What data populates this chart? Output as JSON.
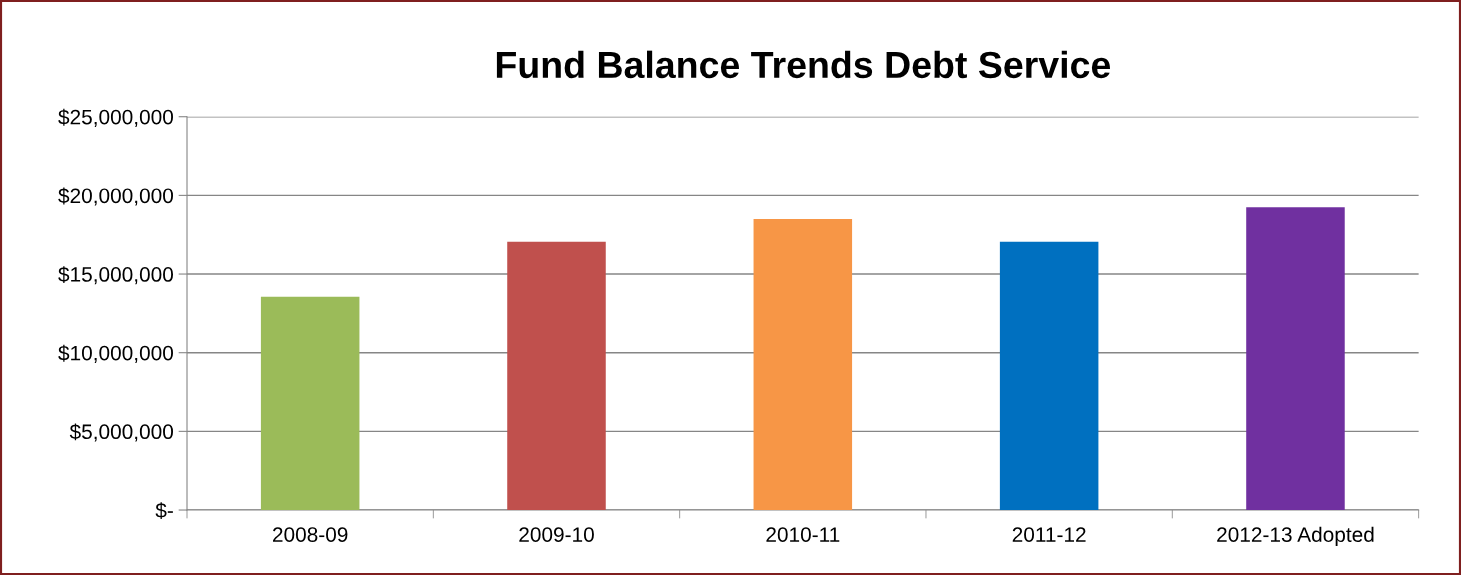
{
  "chart_data": {
    "type": "bar",
    "title": "Fund Balance Trends Debt Service",
    "categories": [
      "2008-09",
      "2009-10",
      "2010-11",
      "2011-12",
      "2012-13 Adopted"
    ],
    "values": [
      13550000,
      17050000,
      18500000,
      17050000,
      19250000
    ],
    "colors": [
      "#9bbb59",
      "#c0504d",
      "#f79646",
      "#0070c0",
      "#7030a0"
    ],
    "ylim": [
      0,
      25000000
    ],
    "yticks": [
      {
        "value": 0,
        "label": "$-"
      },
      {
        "value": 5000000,
        "label": "$5,000,000"
      },
      {
        "value": 10000000,
        "label": "$10,000,000"
      },
      {
        "value": 15000000,
        "label": "$15,000,000"
      },
      {
        "value": 20000000,
        "label": "$20,000,000"
      },
      {
        "value": 25000000,
        "label": "$25,000,000"
      }
    ],
    "grid": "y",
    "legend": false
  }
}
